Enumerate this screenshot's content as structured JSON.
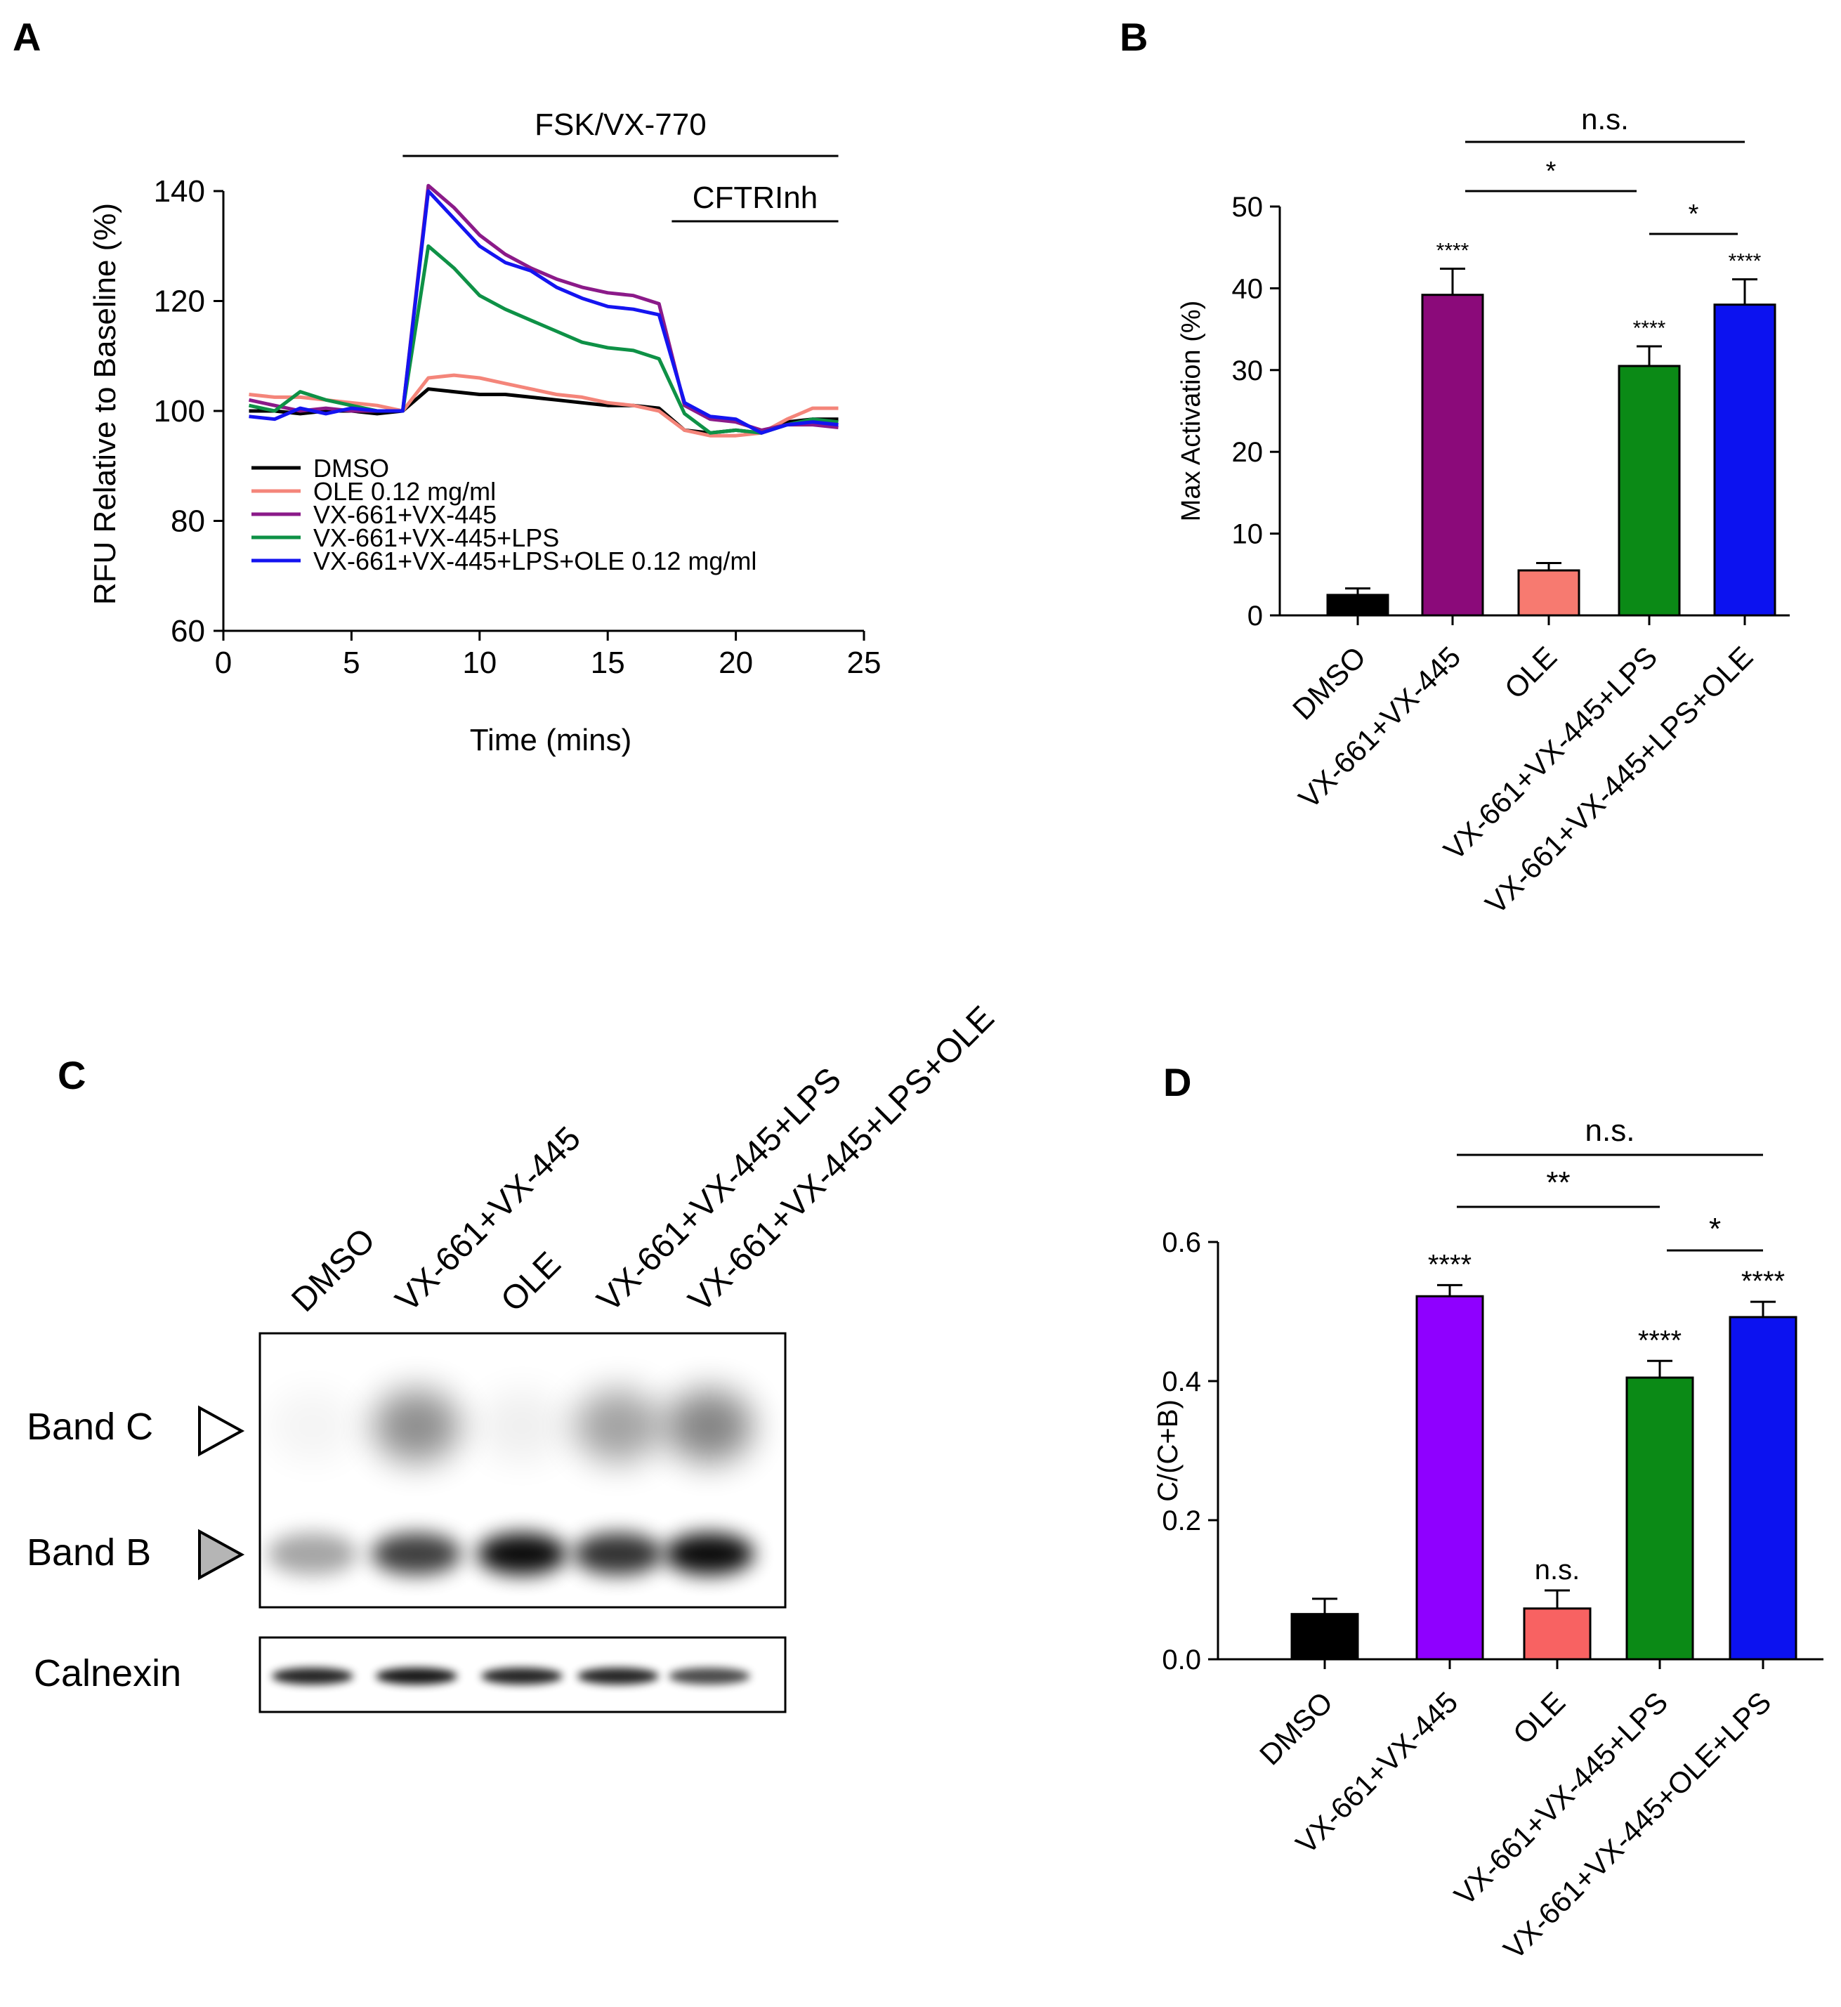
{
  "panels": {
    "a": "A",
    "b": "B",
    "c": "C",
    "d": "D"
  },
  "chart_data": [
    {
      "panel": "A",
      "type": "line",
      "title": "",
      "xlabel": "Time (mins)",
      "ylabel": "RFU Relative to Baseline (%)",
      "xlim": [
        0,
        25
      ],
      "ylim": [
        60,
        140
      ],
      "xticks": [
        0,
        5,
        10,
        15,
        20,
        25
      ],
      "yticks": [
        60,
        80,
        100,
        120,
        140
      ],
      "annotations": [
        {
          "text": "FSK/VX-770",
          "x_start": 7,
          "x_end": 24
        },
        {
          "text": "CFTRInh",
          "x_start": 17.5,
          "x_end": 24
        }
      ],
      "legend_position": "bottom-left",
      "x": [
        1,
        2,
        3,
        4,
        5,
        6,
        7,
        8,
        9,
        10,
        11,
        12,
        13,
        14,
        15,
        16,
        17,
        18,
        19,
        20,
        21,
        22,
        23,
        24
      ],
      "series": [
        {
          "name": "DMSO",
          "color": "#000000",
          "values": [
            100,
            100,
            99.5,
            100,
            100,
            99.5,
            100,
            104,
            103.5,
            103,
            103,
            102.5,
            102,
            101.5,
            101,
            101,
            100.5,
            96.5,
            96,
            96.5,
            96,
            98,
            98.5,
            98.5
          ]
        },
        {
          "name": "OLE 0.12 mg/ml",
          "color": "#f4857a",
          "values": [
            103,
            102.5,
            102.5,
            102,
            101.5,
            101,
            100,
            106,
            106.5,
            106,
            105,
            104,
            103,
            102.5,
            101.5,
            101,
            100,
            96.5,
            95.5,
            95.5,
            96,
            98.5,
            100.5,
            100.5
          ]
        },
        {
          "name": "VX-661+VX-445",
          "color": "#8b1a89",
          "values": [
            102,
            101,
            100,
            100.5,
            100,
            100,
            100,
            141,
            137,
            132,
            128.5,
            126,
            124,
            122.5,
            121.5,
            121,
            119.5,
            101,
            98.5,
            98,
            96.5,
            97.5,
            97.5,
            97
          ]
        },
        {
          "name": "VX-661+VX-445+LPS",
          "color": "#0e9146",
          "values": [
            101,
            100,
            103.5,
            102,
            101,
            100,
            100,
            130,
            126,
            121,
            118.5,
            116.5,
            114.5,
            112.5,
            111.5,
            111,
            109.5,
            99.5,
            96,
            96.5,
            96,
            97.5,
            98.5,
            98
          ]
        },
        {
          "name": "VX-661+VX-445+LPS+OLE 0.12 mg/ml",
          "color": "#1414f0",
          "values": [
            99,
            98.5,
            100.5,
            99.5,
            100.5,
            100,
            100,
            140,
            135,
            130,
            127,
            125.5,
            122.5,
            120.5,
            119,
            118.5,
            117.5,
            101.5,
            99,
            98.5,
            96,
            97.5,
            98,
            97.5
          ]
        }
      ]
    },
    {
      "panel": "B",
      "type": "bar",
      "title": "",
      "xlabel": "",
      "ylabel": "Max Activation (%)",
      "ylim": [
        0,
        50
      ],
      "yticks": [
        0,
        10,
        20,
        30,
        40,
        50
      ],
      "categories": [
        "DMSO",
        "VX-661+VX-445",
        "OLE",
        "VX-661+VX-445+LPS",
        "VX-661+VX-445+LPS+OLE"
      ],
      "values": [
        2.5,
        39.2,
        5.5,
        30.5,
        38.0
      ],
      "errors": [
        0.8,
        3.2,
        0.9,
        2.4,
        3.1
      ],
      "colors": [
        "#000000",
        "#8b0a7a",
        "#f77a70",
        "#0b8a16",
        "#0c12f0"
      ],
      "bar_labels": [
        "",
        "****",
        "",
        "****",
        "****"
      ],
      "comparisons": [
        {
          "from": 1,
          "to": 4,
          "label": "n.s."
        },
        {
          "from": 1,
          "to": 3,
          "label": "*"
        },
        {
          "from": 3,
          "to": 4,
          "label": "*"
        }
      ]
    },
    {
      "panel": "C",
      "type": "blot",
      "lanes": [
        "DMSO",
        "VX-661+VX-445",
        "OLE",
        "VX-661+VX-445+LPS",
        "VX-661+VX-445+LPS+OLE"
      ],
      "row_labels": [
        "Band C",
        "Band B",
        "Calnexin"
      ],
      "band_c_intensity": [
        0.05,
        0.55,
        0.08,
        0.45,
        0.6
      ],
      "band_b_intensity": [
        0.35,
        0.75,
        0.95,
        0.8,
        0.95
      ],
      "calnexin_intensity": [
        0.85,
        0.9,
        0.85,
        0.85,
        0.7
      ]
    },
    {
      "panel": "D",
      "type": "bar",
      "title": "",
      "xlabel": "",
      "ylabel": "C/(C+B)",
      "ylim": [
        0,
        0.6
      ],
      "yticks": [
        0.0,
        0.2,
        0.4,
        0.6
      ],
      "tick_labels": [
        "0.0",
        "0.2",
        "0.4",
        "0.6"
      ],
      "categories": [
        "DMSO",
        "VX-661+VX-445",
        "OLE",
        "VX-661+VX-445+LPS",
        "VX-661+VX-445+OLE+LPS"
      ],
      "values": [
        0.065,
        0.522,
        0.073,
        0.405,
        0.492
      ],
      "errors": [
        0.022,
        0.016,
        0.026,
        0.024,
        0.022
      ],
      "colors": [
        "#000000",
        "#8f00ff",
        "#f86262",
        "#0b8a16",
        "#0c12f0"
      ],
      "bar_labels": [
        "",
        "****",
        "n.s.",
        "****",
        "****"
      ],
      "comparisons": [
        {
          "from": 1,
          "to": 4,
          "label": "n.s."
        },
        {
          "from": 1,
          "to": 3,
          "label": "**"
        },
        {
          "from": 3,
          "to": 4,
          "label": "*"
        }
      ]
    }
  ]
}
